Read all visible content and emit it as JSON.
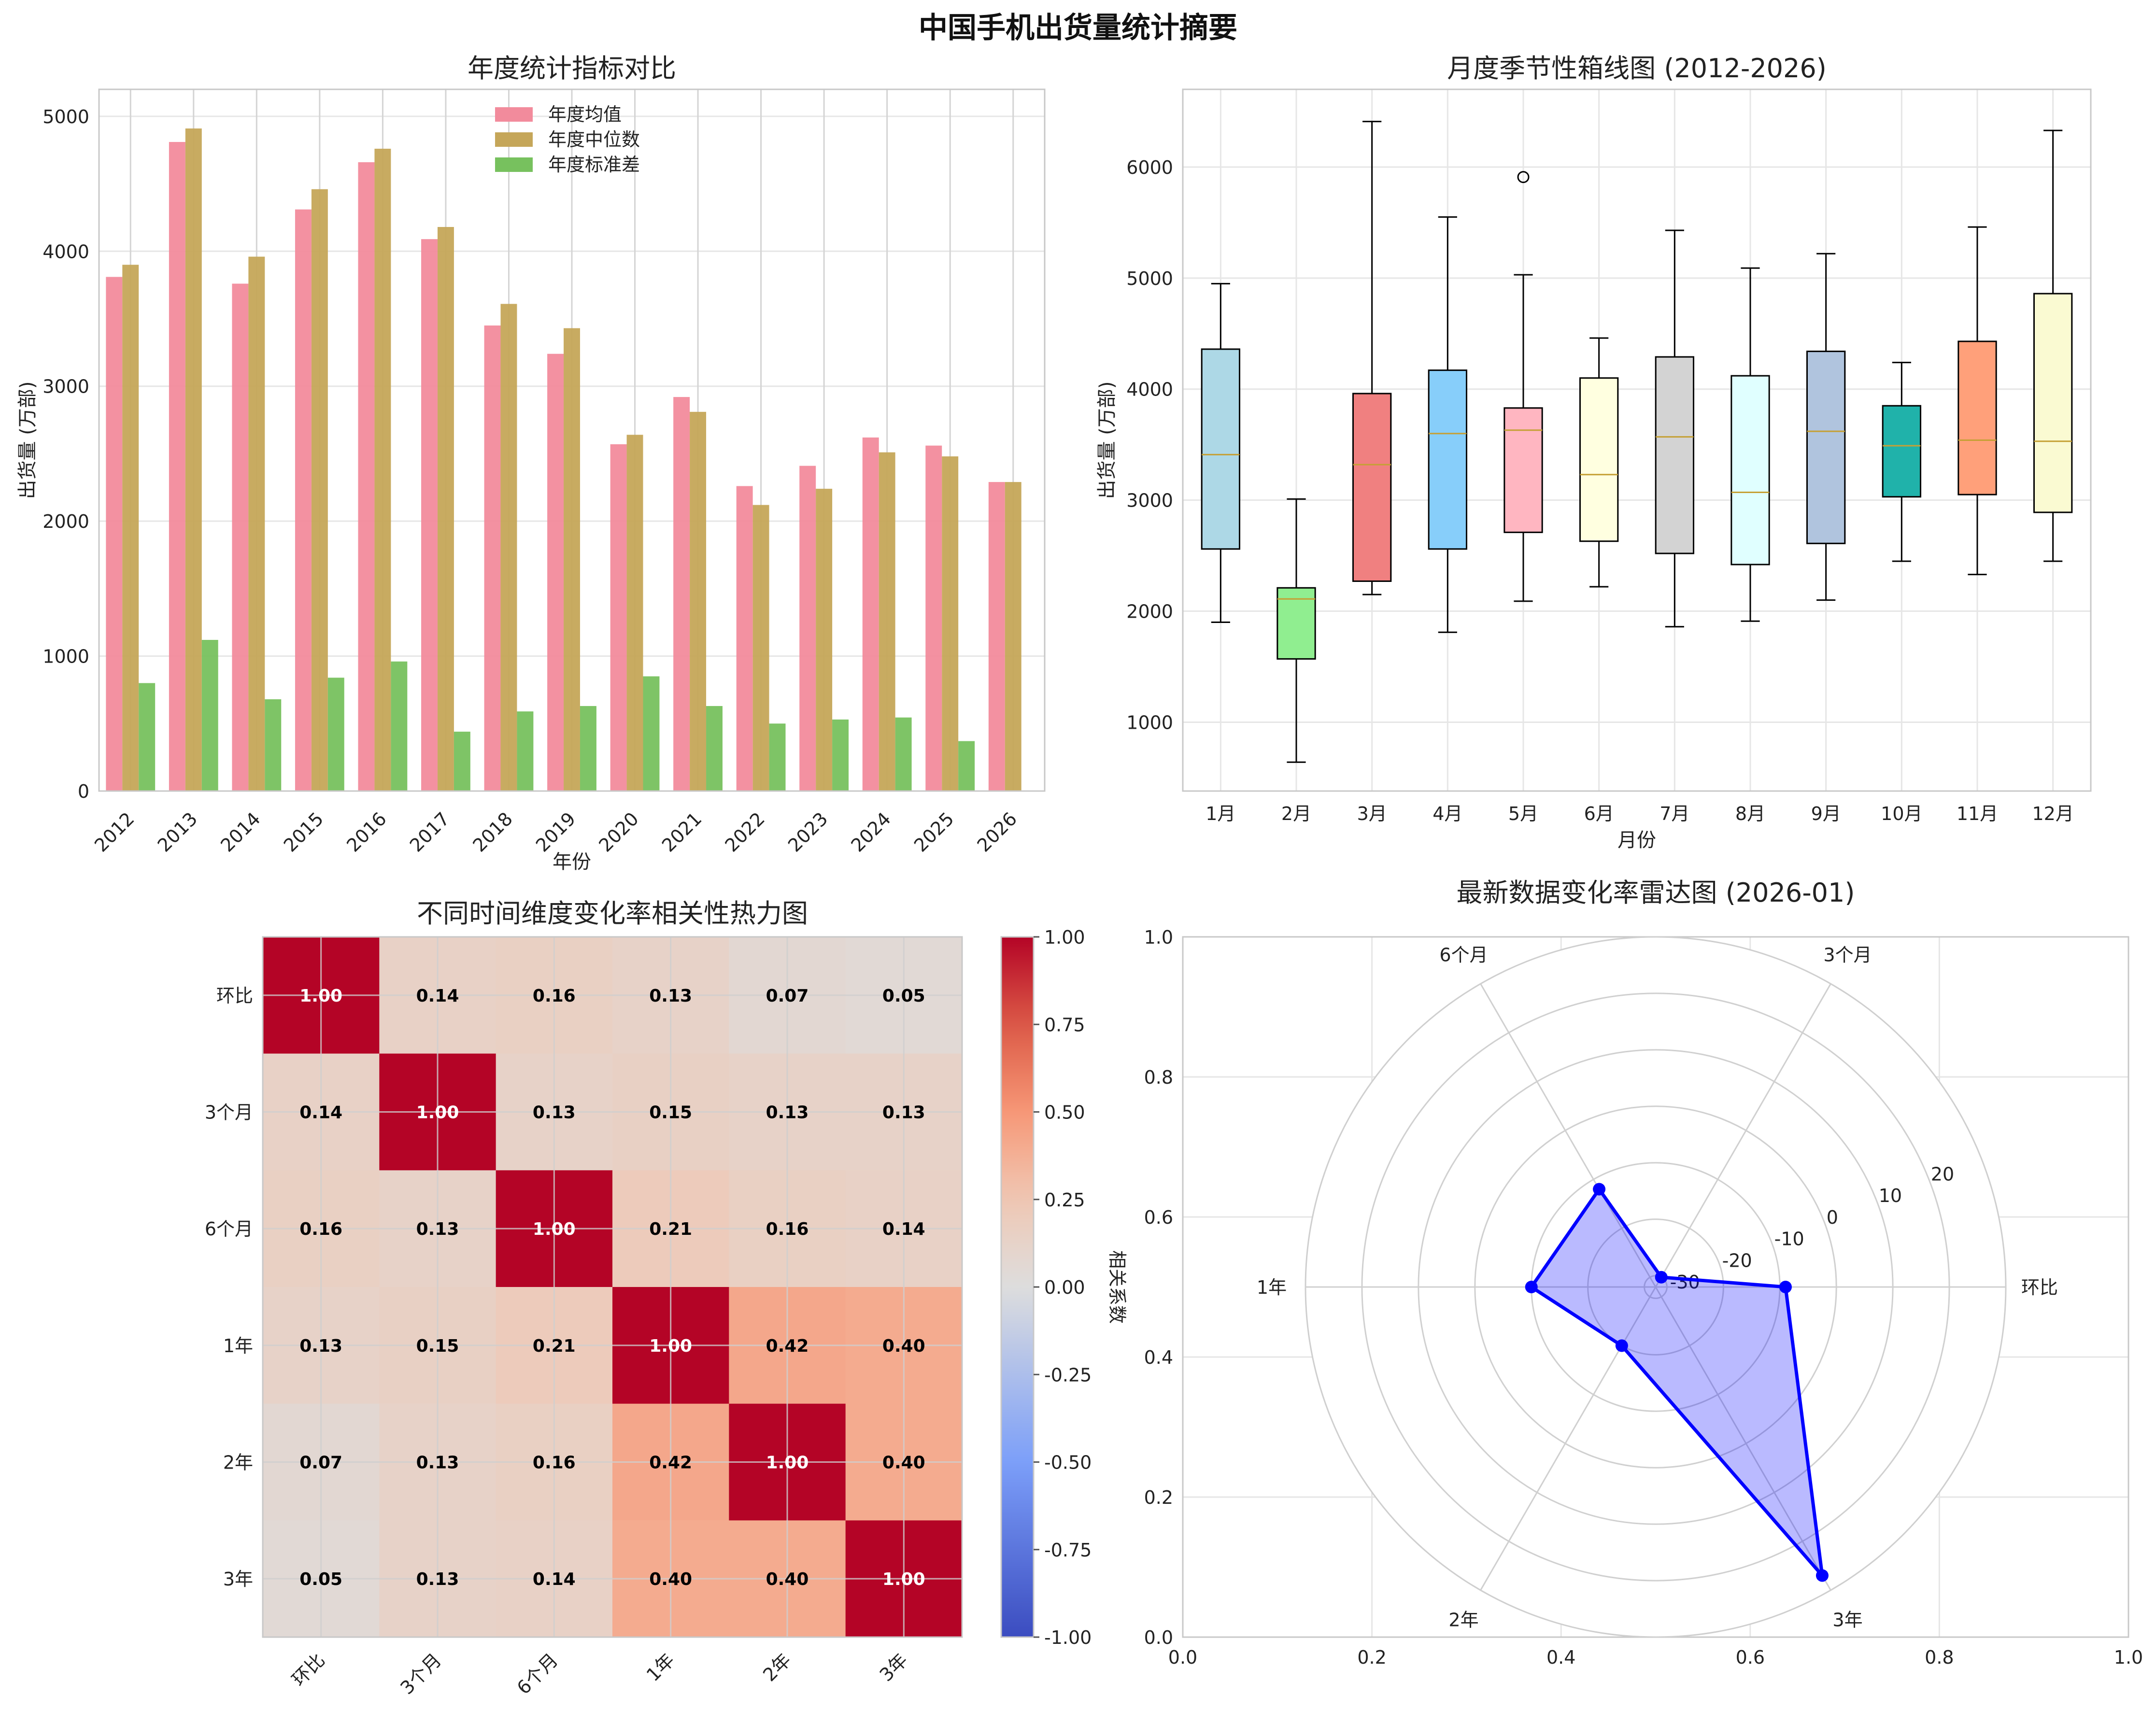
{
  "suptitle": "中国手机出货量统计摘要",
  "chart_data": [
    {
      "id": "annual",
      "type": "bar",
      "title": "年度统计指标对比",
      "xlabel": "年份",
      "ylabel": "出货量 (万部)",
      "ylim": [
        0,
        5200
      ],
      "yticks": [
        0,
        1000,
        2000,
        3000,
        4000,
        5000
      ],
      "categories": [
        "2012",
        "2013",
        "2014",
        "2015",
        "2016",
        "2017",
        "2018",
        "2019",
        "2020",
        "2021",
        "2022",
        "2023",
        "2024",
        "2025",
        "2026"
      ],
      "series": [
        {
          "name": "年度均值",
          "color": "#f28b9c",
          "values": [
            3810,
            4810,
            3760,
            4310,
            4660,
            4090,
            3450,
            3240,
            2570,
            2920,
            2260,
            2410,
            2620,
            2560,
            2290
          ]
        },
        {
          "name": "年度中位数",
          "color": "#c5a659",
          "values": [
            3900,
            4910,
            3960,
            4460,
            4760,
            4180,
            3610,
            3430,
            2640,
            2810,
            2120,
            2240,
            2510,
            2480,
            2290
          ]
        },
        {
          "name": "年度标准差",
          "color": "#77c15e",
          "values": [
            800,
            1120,
            680,
            840,
            960,
            440,
            590,
            630,
            850,
            630,
            500,
            530,
            545,
            370,
            0
          ]
        }
      ],
      "legend": "top-center"
    },
    {
      "id": "monthly",
      "type": "boxplot",
      "title": "月度季节性箱线图 (2012-2026)",
      "xlabel": "月份",
      "ylabel": "出货量 (万部)",
      "ylim": [
        380,
        6700
      ],
      "yticks": [
        1000,
        2000,
        3000,
        4000,
        5000,
        6000
      ],
      "categories": [
        "1月",
        "2月",
        "3月",
        "4月",
        "5月",
        "6月",
        "7月",
        "8月",
        "9月",
        "10月",
        "11月",
        "12月"
      ],
      "boxes": [
        {
          "whislo": 1900,
          "q1": 2560,
          "med": 3410,
          "q3": 4360,
          "whishi": 4950,
          "fliers": [],
          "color": "#add8e6"
        },
        {
          "whislo": 640,
          "q1": 1570,
          "med": 2110,
          "q3": 2210,
          "whishi": 3010,
          "fliers": [],
          "color": "#90ee90"
        },
        {
          "whislo": 2150,
          "q1": 2270,
          "med": 3320,
          "q3": 3960,
          "whishi": 6410,
          "fliers": [],
          "color": "#f08080"
        },
        {
          "whislo": 1810,
          "q1": 2560,
          "med": 3600,
          "q3": 4170,
          "whishi": 5550,
          "fliers": [],
          "color": "#87cefa"
        },
        {
          "whislo": 2090,
          "q1": 2710,
          "med": 3630,
          "q3": 3830,
          "whishi": 5030,
          "fliers": [
            5910
          ],
          "color": "#ffb6c1"
        },
        {
          "whislo": 2220,
          "q1": 2630,
          "med": 3230,
          "q3": 4100,
          "whishi": 4460,
          "fliers": [],
          "color": "#ffffe0"
        },
        {
          "whislo": 1860,
          "q1": 2520,
          "med": 3570,
          "q3": 4290,
          "whishi": 5430,
          "fliers": [],
          "color": "#d3d3d3"
        },
        {
          "whislo": 1910,
          "q1": 2420,
          "med": 3070,
          "q3": 4120,
          "whishi": 5090,
          "fliers": [],
          "color": "#e0ffff"
        },
        {
          "whislo": 2100,
          "q1": 2610,
          "med": 3620,
          "q3": 4340,
          "whishi": 5220,
          "fliers": [],
          "color": "#b0c4de"
        },
        {
          "whislo": 2450,
          "q1": 3030,
          "med": 3490,
          "q3": 3850,
          "whishi": 4240,
          "fliers": [],
          "color": "#20b2aa"
        },
        {
          "whislo": 2330,
          "q1": 3050,
          "med": 3540,
          "q3": 4430,
          "whishi": 5460,
          "fliers": [],
          "color": "#ffa07a"
        },
        {
          "whislo": 2450,
          "q1": 2890,
          "med": 3530,
          "q3": 4860,
          "whishi": 6330,
          "fliers": [],
          "color": "#fafad2"
        }
      ]
    },
    {
      "id": "heatmap",
      "type": "heatmap",
      "title": "不同时间维度变化率相关性热力图",
      "labels": [
        "环比",
        "3个月",
        "6个月",
        "1年",
        "2年",
        "3年"
      ],
      "matrix": [
        [
          1.0,
          0.14,
          0.16,
          0.13,
          0.07,
          0.05
        ],
        [
          0.14,
          1.0,
          0.13,
          0.15,
          0.13,
          0.13
        ],
        [
          0.16,
          0.13,
          1.0,
          0.21,
          0.16,
          0.14
        ],
        [
          0.13,
          0.15,
          0.21,
          1.0,
          0.42,
          0.4
        ],
        [
          0.07,
          0.13,
          0.16,
          0.42,
          1.0,
          0.4
        ],
        [
          0.05,
          0.13,
          0.14,
          0.4,
          0.4,
          1.0
        ]
      ],
      "colorbar_label": "相关系数",
      "colorbar_ticks": [
        "1.00",
        "0.75",
        "0.50",
        "0.25",
        "0.00",
        "-0.25",
        "-0.50",
        "-0.75",
        "-1.00"
      ],
      "vmin": -1,
      "vmax": 1
    },
    {
      "id": "radar",
      "type": "radar",
      "title": "最新数据变化率雷达图 (2026-01)",
      "axes": [
        "环比",
        "3个月",
        "6个月",
        "1年",
        "2年",
        "3年"
      ],
      "values": [
        -9,
        -30,
        -12,
        -10,
        -20,
        27
      ],
      "rlim": [
        -32,
        30
      ],
      "rticks": [
        "-30",
        "-20",
        "-10",
        "0",
        "10",
        "20"
      ],
      "rtick_values": [
        -30,
        -20,
        -10,
        0,
        10,
        20
      ],
      "color": "#0000ff",
      "cartesian_ticks": [
        "0.0",
        "0.2",
        "0.4",
        "0.6",
        "0.8",
        "1.0"
      ]
    }
  ]
}
